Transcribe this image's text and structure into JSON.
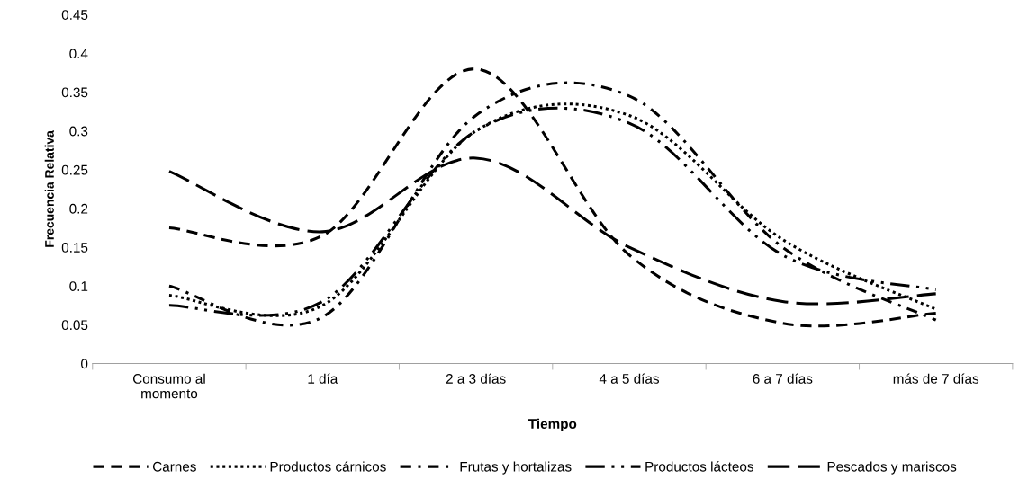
{
  "chart_data": {
    "type": "line",
    "xlabel": "Tiempo",
    "ylabel": "Frecuencia Relativa",
    "categories": [
      "Consumo al\nmomento",
      "1 día",
      "2 a 3 días",
      "4 a 5 días",
      "6 a 7 días",
      "más de 7 días"
    ],
    "ylim": [
      0,
      0.45
    ],
    "yticks": [
      {
        "value": 0,
        "label": "0"
      },
      {
        "value": 0.05,
        "label": "0.05"
      },
      {
        "value": 0.1,
        "label": "0.1"
      },
      {
        "value": 0.15,
        "label": "0.15"
      },
      {
        "value": 0.2,
        "label": "0.2"
      },
      {
        "value": 0.25,
        "label": "0.25"
      },
      {
        "value": 0.3,
        "label": "0.3"
      },
      {
        "value": 0.35,
        "label": "0.35"
      },
      {
        "value": 0.4,
        "label": "0.4"
      },
      {
        "value": 0.45,
        "label": "0.45"
      }
    ],
    "grid": false,
    "legend": "bottom",
    "marker": "none",
    "series": [
      {
        "name": "Carnes",
        "color": "#000000",
        "line_style": "dashed",
        "values": [
          0.175,
          0.165,
          0.38,
          0.14,
          0.052,
          0.065
        ]
      },
      {
        "name": "Productos cárnicos",
        "color": "#000000",
        "line_style": "dotted",
        "values": [
          0.088,
          0.075,
          0.3,
          0.32,
          0.16,
          0.07
        ]
      },
      {
        "name": "Frutas y hortalizas",
        "color": "#000000",
        "line_style": "dashdot",
        "values": [
          0.1,
          0.06,
          0.32,
          0.345,
          0.15,
          0.056
        ]
      },
      {
        "name": "Productos lácteos",
        "color": "#000000",
        "line_style": "longdashdot",
        "values": [
          0.075,
          0.08,
          0.3,
          0.31,
          0.14,
          0.095
        ]
      },
      {
        "name": "Pescados y mariscos",
        "color": "#000000",
        "line_style": "longdash",
        "values": [
          0.248,
          0.17,
          0.265,
          0.15,
          0.08,
          0.09
        ]
      }
    ]
  }
}
